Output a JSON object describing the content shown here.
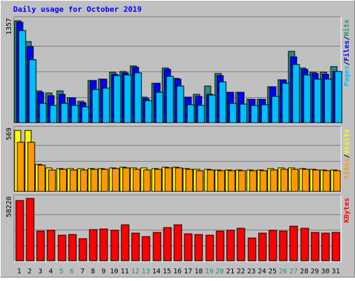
{
  "colors": {
    "background": "#c0c0c0",
    "border_light": "#ffffff",
    "border_dark": "#808080",
    "title": "#0000ff",
    "gridline": "#808080",
    "hits": "#2e8b74",
    "files": "#0000ff",
    "pages": "#00bfff",
    "visits": "#ffff00",
    "sites": "#ff9900",
    "kbytes": "#ff0000",
    "weekend_label": "#2e8b74",
    "weekday_label": "#000000"
  },
  "chart_data": [
    {
      "type": "bar",
      "title": "Daily usage for October 2019",
      "ymax_label": "1357",
      "ylim": [
        0,
        1357
      ],
      "legend": [
        {
          "key": "pages",
          "label": "Pages"
        },
        {
          "sep": "/"
        },
        {
          "key": "files",
          "label": "Files"
        },
        {
          "sep": "/"
        },
        {
          "key": "hits",
          "label": "Hits"
        }
      ],
      "categories": [
        "1",
        "2",
        "3",
        "4",
        "5",
        "6",
        "7",
        "8",
        "9",
        "10",
        "11",
        "12",
        "13",
        "14",
        "15",
        "16",
        "17",
        "18",
        "19",
        "20",
        "21",
        "22",
        "23",
        "24",
        "25",
        "26",
        "27",
        "28",
        "29",
        "30",
        "31"
      ],
      "weekend_days": [
        "5",
        "6",
        "12",
        "13",
        "19",
        "20",
        "26",
        "27"
      ],
      "series": [
        {
          "name": "Hits",
          "key": "hits",
          "values": [
            1350,
            1070,
            420,
            390,
            420,
            330,
            280,
            560,
            580,
            670,
            680,
            750,
            340,
            520,
            720,
            590,
            340,
            380,
            490,
            650,
            400,
            400,
            310,
            310,
            480,
            570,
            940,
            720,
            670,
            670,
            740
          ]
        },
        {
          "name": "Files",
          "key": "files",
          "values": [
            1330,
            1010,
            400,
            360,
            380,
            330,
            270,
            560,
            580,
            640,
            660,
            730,
            320,
            520,
            710,
            580,
            340,
            350,
            380,
            620,
            400,
            400,
            310,
            310,
            480,
            570,
            870,
            710,
            650,
            640,
            680
          ]
        },
        {
          "name": "Pages",
          "key": "pages",
          "values": [
            1220,
            830,
            260,
            230,
            260,
            230,
            210,
            440,
            460,
            620,
            630,
            660,
            290,
            400,
            610,
            490,
            240,
            230,
            370,
            540,
            260,
            250,
            230,
            240,
            350,
            520,
            770,
            630,
            580,
            580,
            680
          ]
        }
      ]
    },
    {
      "type": "bar",
      "ymax_label": "569",
      "ylim": [
        0,
        569
      ],
      "legend": [
        {
          "key": "sites",
          "label": "Sites"
        },
        {
          "sep": "/"
        },
        {
          "key": "visits",
          "label": "Visits"
        }
      ],
      "categories": [
        "1",
        "2",
        "3",
        "4",
        "5",
        "6",
        "7",
        "8",
        "9",
        "10",
        "11",
        "12",
        "13",
        "14",
        "15",
        "16",
        "17",
        "18",
        "19",
        "20",
        "21",
        "22",
        "23",
        "24",
        "25",
        "26",
        "27",
        "28",
        "29",
        "30",
        "31"
      ],
      "series": [
        {
          "name": "Visits",
          "key": "visits",
          "values": [
            565,
            565,
            248,
            220,
            210,
            208,
            210,
            212,
            212,
            218,
            225,
            215,
            215,
            212,
            225,
            225,
            212,
            205,
            205,
            200,
            200,
            200,
            200,
            200,
            208,
            215,
            215,
            212,
            202,
            200,
            195
          ]
        },
        {
          "name": "Sites",
          "key": "sites",
          "values": [
            455,
            455,
            240,
            195,
            205,
            200,
            200,
            205,
            205,
            210,
            220,
            205,
            200,
            205,
            218,
            215,
            205,
            192,
            195,
            192,
            192,
            192,
            190,
            190,
            200,
            205,
            205,
            205,
            195,
            192,
            190
          ]
        }
      ]
    },
    {
      "type": "bar",
      "ymax_label": "58220",
      "ylim": [
        0,
        58220
      ],
      "legend": [
        {
          "key": "kbytes",
          "label": "KBytes"
        }
      ],
      "categories": [
        "1",
        "2",
        "3",
        "4",
        "5",
        "6",
        "7",
        "8",
        "9",
        "10",
        "11",
        "12",
        "13",
        "14",
        "15",
        "16",
        "17",
        "18",
        "19",
        "20",
        "21",
        "22",
        "23",
        "24",
        "25",
        "26",
        "27",
        "28",
        "29",
        "30",
        "31"
      ],
      "series": [
        {
          "name": "KBytes",
          "key": "kbytes",
          "values": [
            56500,
            58220,
            28000,
            28500,
            23700,
            24500,
            20800,
            29300,
            30000,
            28400,
            33900,
            26000,
            22400,
            26500,
            31000,
            33800,
            25000,
            24500,
            24000,
            27500,
            28600,
            30300,
            21600,
            25800,
            28500,
            28000,
            32500,
            30700,
            26500,
            25900,
            26500
          ]
        }
      ]
    }
  ]
}
